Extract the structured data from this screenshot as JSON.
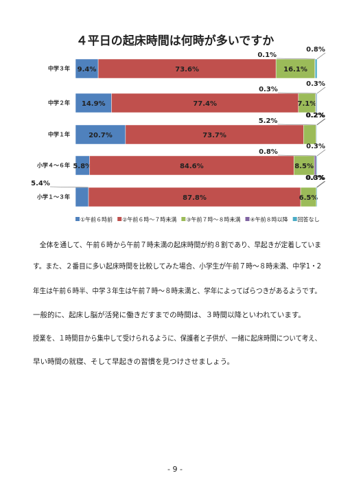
{
  "chart_data": {
    "type": "bar",
    "orientation": "horizontal",
    "stacked": true,
    "title": "４平日の起床時間は何時が多いですか",
    "categories": [
      "中学３年",
      "中学２年",
      "中学１年",
      "小学４～６年",
      "小学１～３年"
    ],
    "xlim": [
      0,
      100
    ],
    "series": [
      {
        "name": "①午前６時前",
        "color": "#4f81bd",
        "values": [
          9.4,
          14.9,
          20.7,
          5.8,
          5.4
        ],
        "value_labels": [
          "9.4%",
          "14.9%",
          "20.7%",
          "5.8%",
          "5.4%"
        ]
      },
      {
        "name": "②午前６時～７時未満",
        "color": "#c0504d",
        "values": [
          73.6,
          77.4,
          73.7,
          84.6,
          87.8
        ],
        "value_labels": [
          "73.6%",
          "77.4%",
          "73.7%",
          "84.6%",
          "87.8%"
        ]
      },
      {
        "name": "③午前７時～８時未満",
        "color": "#9bbb59",
        "values": [
          16.1,
          7.1,
          5.2,
          8.5,
          6.5
        ],
        "value_labels": [
          "16.1%",
          "7.1%",
          "5.2%",
          "8.5%",
          "6.5%"
        ]
      },
      {
        "name": "④午前８時以降",
        "color": "#8064a2",
        "values": [
          0.1,
          0.3,
          0.2,
          0.8,
          0.0
        ],
        "value_labels": [
          "0.1%",
          "0.3%",
          "0.2%",
          "0.8%",
          "0.0%"
        ]
      },
      {
        "name": "回答なし",
        "color": "#4bacc6",
        "values": [
          0.8,
          0.3,
          0.2,
          0.3,
          0.3
        ],
        "value_labels": [
          "0.8%",
          "0.3%",
          "0.2%",
          "0.3%",
          "0.3%"
        ]
      }
    ],
    "legend": "bottom"
  },
  "body": {
    "lines": [
      "　全体を通して、午前６時から午前７時未満の起床時間が約８割であり、早起きが定着していま",
      "す。また、２番目に多い起床時間を比較してみた場合、小学生が午前７時～８時未満、中学1・2",
      "年生は午前６時半、中学３年生は午前７時～８時未満と、学年によってばらつきがあるようです。",
      "一般的に、起床し脳が活発に働きだすまでの時間は、３時間以降といわれています。",
      "授業を、１時間目から集中して受けられるように、保護者と子供が、一緒に起床時間について考え、",
      "早い時間の就寝、そして早起きの習慣を見つけさせましょう。"
    ]
  },
  "page_number": "- 9 -"
}
